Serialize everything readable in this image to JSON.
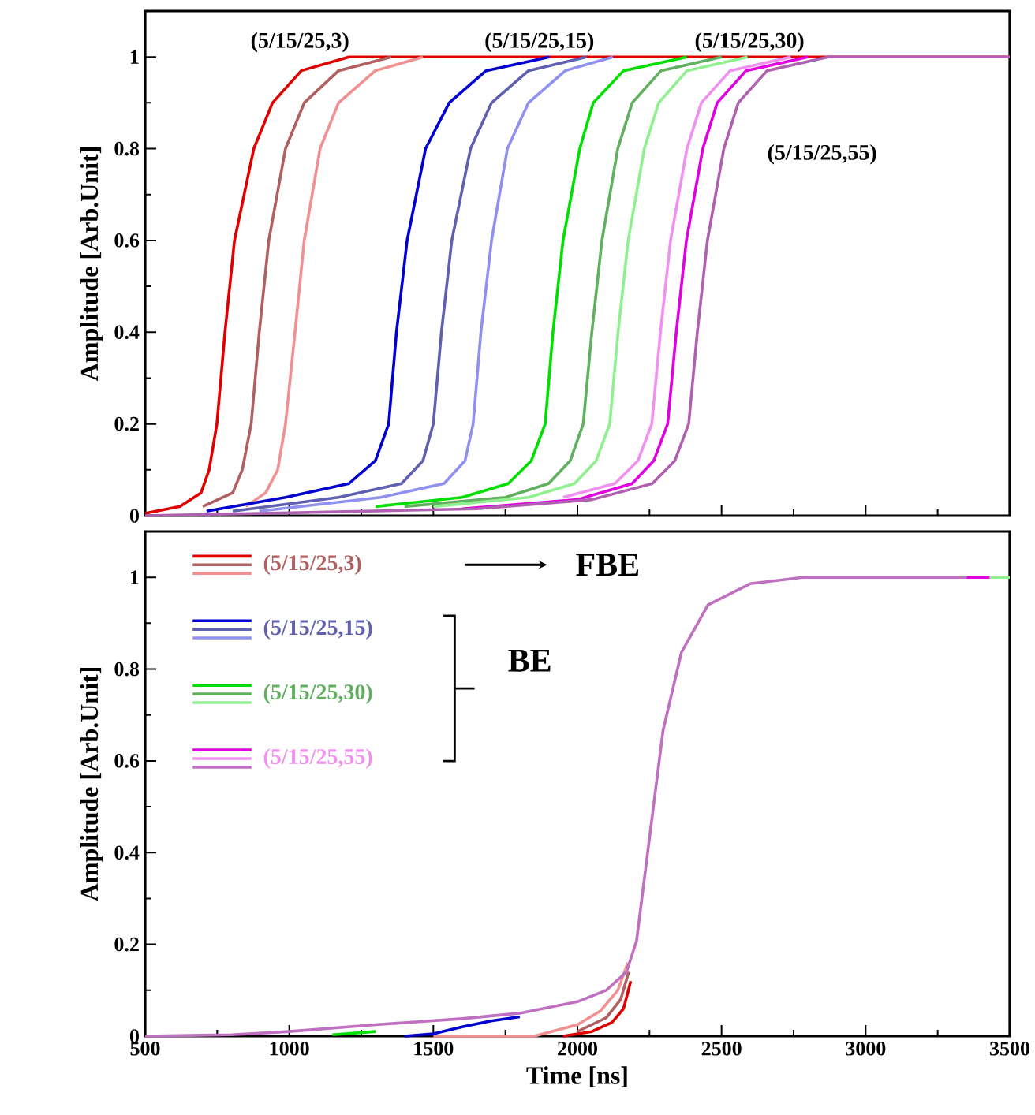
{
  "chart_data": [
    {
      "type": "line",
      "ylabel": "Amplitude [Arb.Unit]",
      "xlim": [
        500,
        3500
      ],
      "xticks": [
        500,
        1000,
        1500,
        2000,
        2500,
        3000,
        3500
      ],
      "ylim": [
        0,
        1.1
      ],
      "yticks": [
        0,
        0.2,
        0.4,
        0.6,
        0.8,
        1
      ],
      "tick_labels": "y",
      "line_style": "solid",
      "annotations": [
        "(5/15/25,3)",
        "(5/15/25,15)",
        "(5/15/25,30)",
        "(5/15/25,55)"
      ],
      "series": [
        {
          "color": "#e00000",
          "x": [
            500,
            621,
            694,
            722,
            749,
            777,
            810,
            877,
            942,
            1042,
            1207,
            3500
          ],
          "values": [
            0.005,
            0.02,
            0.05,
            0.1,
            0.2,
            0.4,
            0.6,
            0.8,
            0.9,
            0.97,
            1,
            1
          ]
        },
        {
          "color": "#b06060",
          "x": [
            700,
            804,
            837,
            868,
            896,
            929,
            987,
            1052,
            1171,
            1354
          ],
          "values": [
            0.02,
            0.05,
            0.1,
            0.2,
            0.4,
            0.6,
            0.8,
            0.9,
            0.97,
            1
          ]
        },
        {
          "color": "#f09090",
          "x": [
            850,
            918,
            960,
            987,
            1020,
            1052,
            1107,
            1171,
            1299,
            1464
          ],
          "values": [
            0.02,
            0.05,
            0.1,
            0.2,
            0.4,
            0.6,
            0.8,
            0.9,
            0.97,
            1
          ]
        },
        {
          "color": "#0000d0",
          "x": [
            713,
            987,
            1207,
            1299,
            1345,
            1372,
            1409,
            1473,
            1555,
            1683,
            1903
          ],
          "values": [
            0.01,
            0.04,
            0.07,
            0.12,
            0.2,
            0.4,
            0.6,
            0.8,
            0.9,
            0.97,
            1
          ]
        },
        {
          "color": "#6060b0",
          "x": [
            804,
            1171,
            1390,
            1464,
            1500,
            1528,
            1564,
            1629,
            1702,
            1830,
            2031
          ],
          "values": [
            0.01,
            0.04,
            0.07,
            0.12,
            0.2,
            0.4,
            0.6,
            0.8,
            0.9,
            0.97,
            1
          ]
        },
        {
          "color": "#9090f0",
          "x": [
            896,
            1317,
            1537,
            1610,
            1638,
            1665,
            1702,
            1757,
            1830,
            1958,
            2123
          ],
          "values": [
            0.01,
            0.04,
            0.07,
            0.12,
            0.2,
            0.4,
            0.6,
            0.8,
            0.9,
            0.97,
            1
          ]
        },
        {
          "color": "#00e000",
          "x": [
            1300,
            1600,
            1760,
            1840,
            1888,
            1915,
            1950,
            2008,
            2055,
            2160,
            2380
          ],
          "values": [
            0.02,
            0.04,
            0.07,
            0.12,
            0.2,
            0.4,
            0.6,
            0.8,
            0.9,
            0.97,
            1
          ]
        },
        {
          "color": "#60b060",
          "x": [
            1400,
            1750,
            1900,
            1975,
            2020,
            2050,
            2085,
            2140,
            2190,
            2290,
            2500
          ],
          "values": [
            0.02,
            0.04,
            0.07,
            0.12,
            0.2,
            0.4,
            0.6,
            0.8,
            0.9,
            0.97,
            1
          ]
        },
        {
          "color": "#90f090",
          "x": [
            1500,
            1830,
            1990,
            2065,
            2112,
            2141,
            2176,
            2232,
            2282,
            2380,
            2590
          ],
          "values": [
            0.02,
            0.04,
            0.07,
            0.12,
            0.2,
            0.4,
            0.6,
            0.8,
            0.9,
            0.97,
            1
          ]
        },
        {
          "color": "#e000e0",
          "x": [
            1600,
            2000,
            2190,
            2265,
            2313,
            2343,
            2378,
            2435,
            2485,
            2585,
            2800
          ],
          "values": [
            0.015,
            0.035,
            0.07,
            0.12,
            0.2,
            0.4,
            0.6,
            0.8,
            0.9,
            0.97,
            1
          ]
        },
        {
          "color": "#b060b0",
          "x": [
            500,
            900,
            1650,
            2050,
            2260,
            2338,
            2386,
            2416,
            2451,
            2508,
            2558,
            2658,
            2870,
            3500
          ],
          "values": [
            0,
            0.005,
            0.015,
            0.035,
            0.07,
            0.12,
            0.2,
            0.4,
            0.6,
            0.8,
            0.9,
            0.97,
            1,
            1
          ]
        },
        {
          "color": "#f090f0",
          "x": [
            1950,
            2130,
            2210,
            2258,
            2288,
            2323,
            2380,
            2430,
            2530,
            2740
          ],
          "values": [
            0.04,
            0.07,
            0.12,
            0.2,
            0.4,
            0.6,
            0.8,
            0.9,
            0.97,
            1
          ]
        }
      ]
    },
    {
      "type": "line",
      "xlabel": "Time [ns]",
      "ylabel": "Amplitude [Arb.Unit]",
      "xlim": [
        500,
        3500
      ],
      "xticks": [
        500,
        1000,
        1500,
        2000,
        2500,
        3000,
        3500
      ],
      "ylim": [
        0,
        1.1
      ],
      "yticks": [
        0,
        0.2,
        0.4,
        0.6,
        0.8,
        1
      ],
      "legend": "top left",
      "line_style": "solid",
      "annotations": [
        "FBE",
        "BE"
      ],
      "series": [
        {
          "name": "(5/15/25,3)",
          "color": "#e00000",
          "x": [
            1950,
            2050,
            2120,
            2160,
            2185
          ],
          "values": [
            0,
            0.01,
            0.03,
            0.06,
            0.12
          ]
        },
        {
          "color": "#b06060",
          "x": [
            2000,
            2100,
            2150,
            2178
          ],
          "values": [
            0.01,
            0.04,
            0.08,
            0.14
          ]
        },
        {
          "color": "#f09090",
          "x": [
            1500,
            1850,
            2000,
            2080,
            2140,
            2175
          ],
          "values": [
            0,
            0,
            0.025,
            0.055,
            0.1,
            0.16
          ]
        },
        {
          "name": "(5/15/25,15)",
          "color": "#0000d0",
          "x": [
            1400,
            1500,
            1600,
            1700,
            1800
          ],
          "values": [
            0,
            0.005,
            0.02,
            0.033,
            0.042
          ]
        },
        {
          "color": "#6060b0"
        },
        {
          "color": "#9090f0"
        },
        {
          "name": "(5/15/25,30)",
          "color": "#00e000",
          "x": [
            1150,
            1300
          ],
          "values": [
            0.003,
            0.01
          ]
        },
        {
          "color": "#60b060"
        },
        {
          "color": "#90f090",
          "x": [
            3430,
            3500
          ],
          "values": [
            1,
            1
          ]
        },
        {
          "name": "(5/15/25,55)",
          "color": "#e000e0",
          "x": [
            3350,
            3430
          ],
          "values": [
            1,
            1
          ]
        },
        {
          "color": "#f090f0"
        },
        {
          "color": "#c070c0",
          "x": [
            500,
            800,
            1000,
            1300,
            1600,
            1800,
            2000,
            2100,
            2170,
            2205,
            2251,
            2297,
            2361,
            2453,
            2599,
            2782,
            3350
          ],
          "values": [
            0,
            0.003,
            0.01,
            0.025,
            0.038,
            0.05,
            0.075,
            0.1,
            0.14,
            0.207,
            0.437,
            0.666,
            0.837,
            0.94,
            0.986,
            1,
            1
          ]
        }
      ]
    }
  ]
}
